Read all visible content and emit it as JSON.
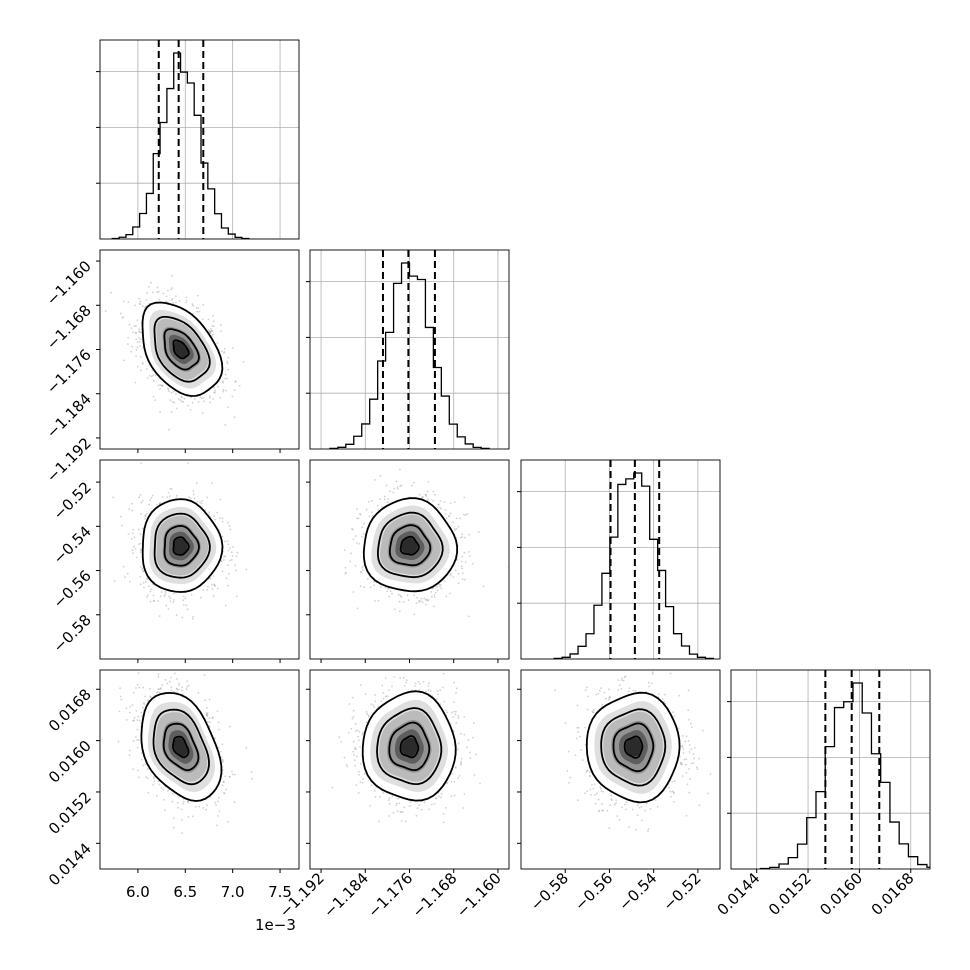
{
  "chart_data": {
    "type": "corner",
    "parameters": [
      {
        "index": 0,
        "range": [
          5.6,
          7.7
        ],
        "ticks": [
          6.0,
          6.5,
          7.0,
          7.5
        ],
        "tick_labels": [
          "6.0",
          "6.5",
          "7.0",
          "7.5"
        ],
        "offset_label": "1e−3",
        "mean": 6.45,
        "sd": 0.2,
        "quantiles": [
          6.22,
          6.43,
          6.69
        ]
      },
      {
        "index": 1,
        "range": [
          -1.194,
          -1.158
        ],
        "ticks": [
          -1.192,
          -1.184,
          -1.176,
          -1.168,
          -1.16
        ],
        "tick_labels": [
          "−1.192",
          "−1.184",
          "−1.176",
          "−1.168",
          "−1.160"
        ],
        "mean": -1.176,
        "sd": 0.004,
        "quantiles": [
          -1.1808,
          -1.1762,
          -1.1714
        ]
      },
      {
        "index": 2,
        "range": [
          -0.6,
          -0.51
        ],
        "ticks": [
          -0.58,
          -0.56,
          -0.54,
          -0.52
        ],
        "tick_labels": [
          "−0.58",
          "−0.56",
          "−0.54",
          "−0.52"
        ],
        "mean": -0.549,
        "sd": 0.01,
        "quantiles": [
          -0.5595,
          -0.5485,
          -0.5375
        ]
      },
      {
        "index": 3,
        "range": [
          0.014,
          0.0171
        ],
        "ticks": [
          0.0144,
          0.0152,
          0.016,
          0.0168
        ],
        "tick_labels": [
          "0.0144",
          "0.0152",
          "0.0160",
          "0.0168"
        ],
        "mean": 0.0159,
        "sd": 0.0004,
        "quantiles": [
          0.01547,
          0.01588,
          0.01631
        ]
      }
    ],
    "correlations": [
      {
        "i": 1,
        "j": 0,
        "rho": -0.4
      },
      {
        "i": 2,
        "j": 0,
        "rho": 0.0
      },
      {
        "i": 2,
        "j": 1,
        "rho": 0.0
      },
      {
        "i": 3,
        "j": 0,
        "rho": -0.35
      },
      {
        "i": 3,
        "j": 1,
        "rho": 0.0
      },
      {
        "i": 3,
        "j": 2,
        "rho": 0.0
      }
    ],
    "histogram_bins": 20,
    "grid": true,
    "colors": {
      "contour": "#000000",
      "scatter": "#9a9a9a",
      "density": "#000000",
      "grid": "#b0b0b0"
    }
  }
}
